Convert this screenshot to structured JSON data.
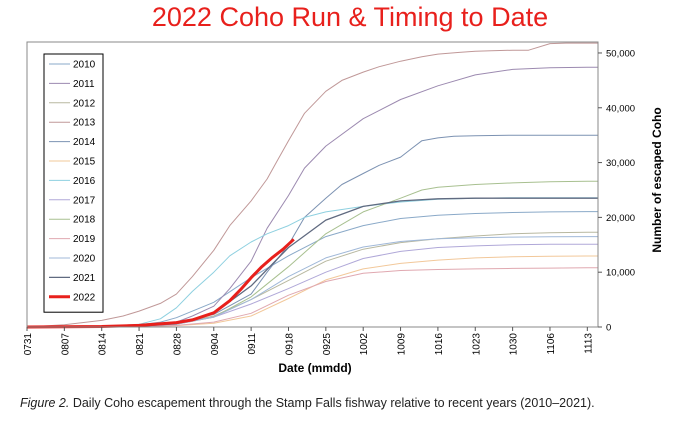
{
  "chart_data": {
    "type": "line",
    "title": "2022 Coho Run & Timing to Date",
    "xlabel": "Date (mmdd)",
    "ylabel": "Number of escaped Coho",
    "y_axis_side": "right",
    "ylim": [
      0,
      52000
    ],
    "yticks": [
      0,
      10000,
      20000,
      30000,
      40000,
      50000
    ],
    "ytick_labels": [
      "0",
      "10,000",
      "20,000",
      "30,000",
      "40,000",
      "50,000"
    ],
    "x_categories": [
      "0731",
      "0807",
      "0814",
      "0821",
      "0828",
      "0904",
      "0911",
      "0918",
      "0925",
      "1002",
      "1009",
      "1016",
      "1023",
      "1030",
      "1106",
      "1113"
    ],
    "grid": false,
    "legend_position": "top-left",
    "series": [
      {
        "name": "2010",
        "color": "#8aa9c8",
        "width": 1,
        "x": [
          0,
          7,
          10,
          14,
          21,
          25,
          28,
          35,
          42,
          49,
          56,
          63,
          70,
          77,
          84,
          91,
          98,
          105,
          107
        ],
        "y": [
          0,
          50,
          80,
          150,
          400,
          900,
          1700,
          4500,
          9000,
          13000,
          16500,
          18500,
          19800,
          20400,
          20700,
          20900,
          21000,
          21050,
          21050
        ]
      },
      {
        "name": "2011",
        "color": "#9c8ab0",
        "width": 1,
        "x": [
          0,
          14,
          21,
          28,
          31,
          35,
          38,
          42,
          45,
          49,
          52,
          56,
          63,
          70,
          77,
          84,
          91,
          98,
          105,
          107
        ],
        "y": [
          0,
          100,
          300,
          900,
          2000,
          3800,
          7000,
          12000,
          18000,
          24000,
          29000,
          33000,
          38000,
          41500,
          44000,
          46000,
          47000,
          47300,
          47400,
          47400
        ]
      },
      {
        "name": "2012",
        "color": "#b8b8a0",
        "width": 1,
        "x": [
          0,
          14,
          21,
          28,
          35,
          42,
          49,
          56,
          63,
          70,
          77,
          84,
          91,
          98,
          105,
          107
        ],
        "y": [
          0,
          80,
          200,
          600,
          2000,
          5000,
          8500,
          12000,
          14200,
          15400,
          16100,
          16600,
          17000,
          17200,
          17300,
          17300
        ]
      },
      {
        "name": "2013",
        "color": "#c09898",
        "width": 1,
        "x": [
          0,
          7,
          14,
          18,
          21,
          25,
          28,
          31,
          35,
          38,
          42,
          45,
          47,
          49,
          52,
          56,
          59,
          63,
          66,
          70,
          74,
          77,
          81,
          84,
          87,
          91,
          94,
          98,
          101,
          105,
          107
        ],
        "y": [
          0,
          400,
          1200,
          2000,
          2900,
          4300,
          6000,
          9200,
          14000,
          18500,
          23000,
          27000,
          30500,
          34000,
          39000,
          43000,
          45000,
          46500,
          47500,
          48500,
          49300,
          49800,
          50100,
          50300,
          50400,
          50500,
          50500,
          51700,
          51800,
          51800,
          51800
        ]
      },
      {
        "name": "2014",
        "color": "#7c92b2",
        "width": 1,
        "x": [
          0,
          14,
          21,
          28,
          35,
          42,
          45,
          49,
          52,
          56,
          59,
          63,
          66,
          70,
          72,
          74,
          77,
          80,
          84,
          91,
          98,
          105,
          107
        ],
        "y": [
          0,
          100,
          300,
          800,
          2300,
          6000,
          10000,
          15000,
          20000,
          23500,
          26000,
          28000,
          29500,
          31000,
          32500,
          34000,
          34500,
          34800,
          34900,
          35000,
          35000,
          35000,
          35000
        ]
      },
      {
        "name": "2015",
        "color": "#f2c89a",
        "width": 1,
        "x": [
          0,
          21,
          28,
          35,
          42,
          49,
          56,
          63,
          70,
          77,
          84,
          91,
          98,
          105,
          107
        ],
        "y": [
          0,
          100,
          250,
          700,
          2000,
          5200,
          8600,
          10600,
          11600,
          12200,
          12600,
          12800,
          12900,
          12950,
          12950
        ]
      },
      {
        "name": "2016",
        "color": "#8ed0e0",
        "width": 1,
        "x": [
          0,
          14,
          21,
          25,
          28,
          31,
          35,
          38,
          42,
          45,
          49,
          52,
          56,
          63,
          70,
          77,
          84,
          91,
          98,
          105,
          107
        ],
        "y": [
          0,
          100,
          500,
          1500,
          3500,
          6500,
          10000,
          13000,
          15500,
          17000,
          18500,
          20000,
          21000,
          22000,
          22800,
          23300,
          23500,
          23600,
          23600,
          23600,
          23600
        ]
      },
      {
        "name": "2017",
        "color": "#b0a8d8",
        "width": 1,
        "x": [
          0,
          14,
          21,
          28,
          35,
          42,
          49,
          56,
          63,
          70,
          77,
          84,
          91,
          98,
          105,
          107
        ],
        "y": [
          0,
          50,
          200,
          600,
          1800,
          4200,
          7000,
          10000,
          12500,
          13800,
          14500,
          14800,
          15000,
          15100,
          15100,
          15100
        ]
      },
      {
        "name": "2018",
        "color": "#a8c090",
        "width": 1,
        "x": [
          0,
          21,
          28,
          35,
          42,
          49,
          56,
          63,
          70,
          74,
          77,
          84,
          91,
          98,
          105,
          107
        ],
        "y": [
          0,
          150,
          500,
          1800,
          5500,
          11000,
          17000,
          21000,
          23500,
          25000,
          25500,
          26000,
          26300,
          26500,
          26600,
          26600
        ]
      },
      {
        "name": "2019",
        "color": "#e0a8b0",
        "width": 1,
        "x": [
          0,
          21,
          28,
          35,
          42,
          49,
          56,
          63,
          70,
          77,
          84,
          91,
          98,
          105,
          107
        ],
        "y": [
          0,
          100,
          300,
          900,
          2500,
          5800,
          8300,
          9800,
          10300,
          10500,
          10600,
          10700,
          10750,
          10800,
          10800
        ]
      },
      {
        "name": "2020",
        "color": "#a0b8d8",
        "width": 1,
        "x": [
          0,
          21,
          28,
          35,
          42,
          49,
          56,
          63,
          70,
          77,
          84,
          91,
          98,
          105,
          107
        ],
        "y": [
          0,
          150,
          500,
          1800,
          5000,
          9200,
          12600,
          14600,
          15600,
          16100,
          16300,
          16400,
          16450,
          16500,
          16500
        ]
      },
      {
        "name": "2021",
        "color": "#606a80",
        "width": 1.3,
        "x": [
          0,
          21,
          28,
          35,
          42,
          49,
          56,
          63,
          70,
          77,
          84,
          91,
          98,
          105,
          107
        ],
        "y": [
          0,
          150,
          600,
          2500,
          7500,
          14500,
          19500,
          22000,
          23000,
          23400,
          23500,
          23500,
          23500,
          23500,
          23500
        ]
      },
      {
        "name": "2022",
        "color": "#e8201c",
        "width": 3,
        "x": [
          0,
          14,
          21,
          28,
          31,
          35,
          38,
          40,
          42,
          44,
          46,
          48,
          50
        ],
        "y": [
          0,
          100,
          300,
          800,
          1300,
          2600,
          4800,
          6800,
          9000,
          11000,
          12700,
          14200,
          16000
        ]
      }
    ]
  },
  "caption": {
    "label": "Figure 2.",
    "text": " Daily Coho escapement through the Stamp Falls fishway relative to recent years (2010–2021)."
  }
}
